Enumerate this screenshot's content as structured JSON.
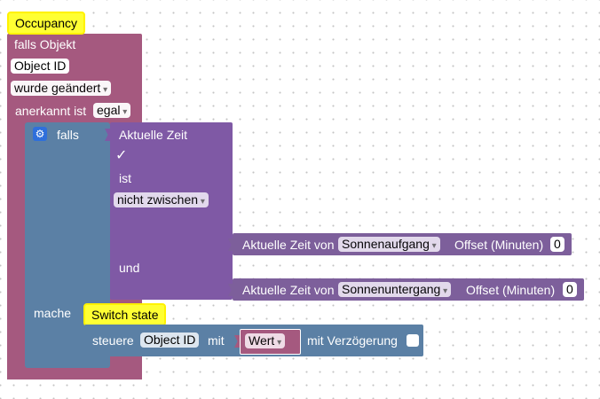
{
  "colors": {
    "event_block": "#a5597f",
    "if_block": "#5b80a5",
    "compare_block": "#7f59a5",
    "value_block": "#7d5f9b",
    "action_block": "#5b80a5",
    "comment": "#ffff33"
  },
  "trigger": {
    "comment": "Occupancy",
    "header": "falls Objekt",
    "object_id": "Object ID",
    "changed_dropdown": "wurde geändert",
    "ack_label": "anerkannt ist",
    "ack_dropdown": "egal"
  },
  "if_block": {
    "label": "falls",
    "gear_icon": "gear-icon",
    "do_label": "mache"
  },
  "time_compare": {
    "current_time": "Aktuelle Zeit",
    "check_mark": "✓",
    "is_label": "ist",
    "operator_dropdown": "nicht zwischen",
    "and_label": "und"
  },
  "sunrise": {
    "label": "Aktuelle Zeit von",
    "dropdown": "Sonnenaufgang",
    "offset_label": "Offset (Minuten)",
    "offset_value": "0"
  },
  "sunset": {
    "label": "Aktuelle Zeit von",
    "dropdown": "Sonnenuntergang",
    "offset_label": "Offset (Minuten)",
    "offset_value": "0"
  },
  "action": {
    "comment": "Switch state",
    "control_label": "steuere",
    "object_id": "Object ID",
    "with_label": "mit",
    "value_dropdown": "Wert",
    "delay_label": "mit Verzögerung"
  }
}
